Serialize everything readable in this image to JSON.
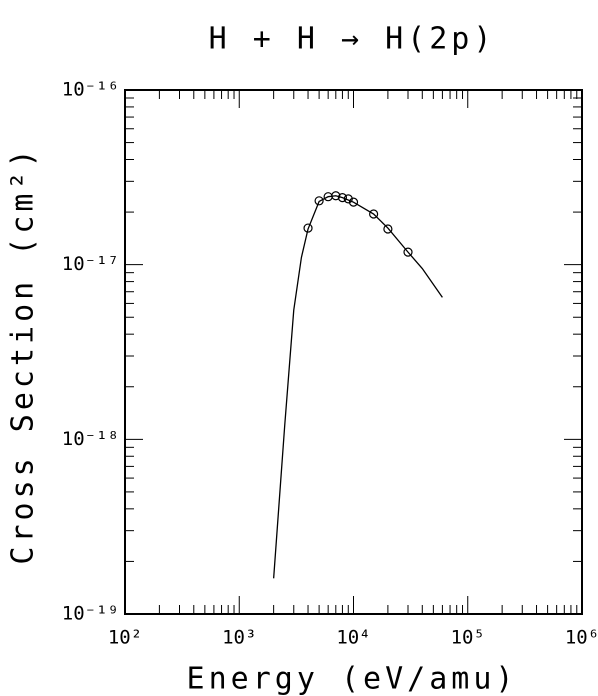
{
  "chart_data": {
    "type": "line",
    "title": "H + H → H(2p)",
    "xlabel": "Energy (eV/amu)",
    "ylabel": "Cross Section (cm²)",
    "xlog": true,
    "ylog": true,
    "xlim": [
      100,
      1000000
    ],
    "ylim": [
      1e-19,
      1e-16
    ],
    "xticks": [
      {
        "value": 100,
        "label": "10²"
      },
      {
        "value": 1000,
        "label": "10³"
      },
      {
        "value": 10000,
        "label": "10⁴"
      },
      {
        "value": 100000,
        "label": "10⁵"
      },
      {
        "value": 1000000,
        "label": "10⁶"
      }
    ],
    "yticks": [
      {
        "value": 1e-19,
        "label": "10⁻¹⁹"
      },
      {
        "value": 1e-18,
        "label": "10⁻¹⁸"
      },
      {
        "value": 1e-17,
        "label": "10⁻¹⁷"
      },
      {
        "value": 1e-16,
        "label": "10⁻¹⁶"
      }
    ],
    "series": [
      {
        "type": "line",
        "color": "#000000",
        "x": [
          2000,
          2500,
          3000,
          3500,
          4000,
          5000,
          6000,
          7000,
          8000,
          10000,
          15000,
          20000,
          30000,
          40000,
          60000
        ],
        "values": [
          1.6e-19,
          1.2e-18,
          5.5e-18,
          1.1e-17,
          1.6e-17,
          2.3e-17,
          2.45e-17,
          2.48e-17,
          2.42e-17,
          2.28e-17,
          1.95e-17,
          1.62e-17,
          1.18e-17,
          9.5e-18,
          6.5e-18
        ]
      },
      {
        "type": "scatter",
        "color": "#000000",
        "x": [
          4000,
          5000,
          6000,
          7000,
          8000,
          9000,
          10000,
          15000,
          20000,
          30000
        ],
        "values": [
          1.62e-17,
          2.32e-17,
          2.45e-17,
          2.48e-17,
          2.42e-17,
          2.38e-17,
          2.28e-17,
          1.95e-17,
          1.6e-17,
          1.18e-17
        ]
      }
    ]
  }
}
